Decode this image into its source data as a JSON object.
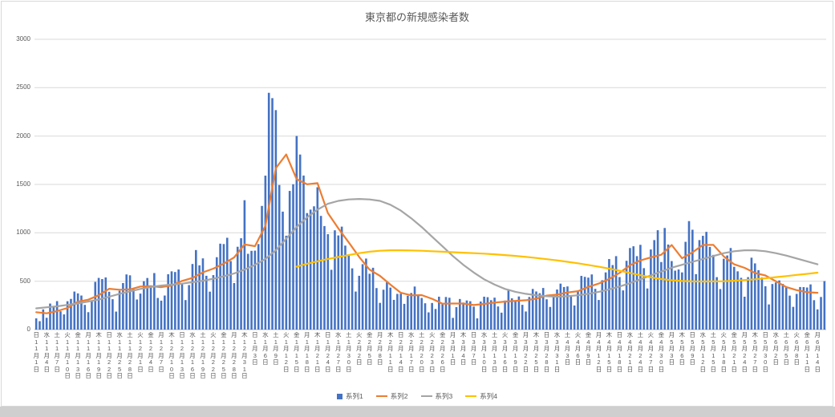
{
  "page": {
    "bottom_strip_color": "#cfcfcf"
  },
  "chart": {
    "gridline_color": "#d9d9d9",
    "axis_line_color": "#bfbfbf",
    "text_color": "#595959",
    "legend": [
      {
        "label": "系列1",
        "marker": "square",
        "color": "#4472c4"
      },
      {
        "label": "系列2",
        "marker": "line",
        "color": "#ed7d31"
      },
      {
        "label": "系列3",
        "marker": "line",
        "color": "#a5a5a5"
      },
      {
        "label": "系列4",
        "marker": "line",
        "color": "#ffc000"
      }
    ]
  },
  "chart_data": {
    "type": "bar",
    "title": "東京都の新規感染者数",
    "xlabel": "",
    "ylabel": "",
    "ylim": [
      0,
      3000
    ],
    "yticks": [
      0,
      500,
      1000,
      1500,
      2000,
      2500,
      3000
    ],
    "grid": true,
    "legend_position": "bottom",
    "x_tick_interval_days": 3,
    "x_tick_labels": [
      "日|11月1日",
      "水|11月4日",
      "土|11月7日",
      "火|11月10日",
      "金|11月13日",
      "月|11月16日",
      "木|11月19日",
      "日|11月22日",
      "水|11月25日",
      "土|11月28日",
      "火|12月1日",
      "金|12月4日",
      "月|12月7日",
      "木|12月10日",
      "日|12月13日",
      "水|12月16日",
      "土|12月19日",
      "火|12月22日",
      "金|12月25日",
      "月|12月28日",
      "木|12月31日",
      "日|1月3日",
      "水|1月6日",
      "土|1月9日",
      "火|1月12日",
      "金|1月15日",
      "月|1月18日",
      "木|1月21日",
      "日|1月24日",
      "水|1月27日",
      "土|1月30日",
      "火|2月2日",
      "金|2月5日",
      "月|2月8日",
      "木|2月11日",
      "日|2月14日",
      "水|2月17日",
      "土|2月20日",
      "火|2月23日",
      "金|2月26日",
      "月|3月1日",
      "木|3月4日",
      "日|3月7日",
      "水|3月10日",
      "土|3月13日",
      "火|3月16日",
      "金|3月19日",
      "月|3月22日",
      "木|3月25日",
      "日|3月28日",
      "水|3月31日",
      "土|4月3日",
      "火|4月6日",
      "金|4月9日",
      "月|4月12日",
      "木|4月15日",
      "日|4月18日",
      "水|4月21日",
      "土|4月24日",
      "火|4月27日",
      "金|4月30日",
      "月|5月3日",
      "木|5月6日",
      "日|5月9日",
      "水|5月12日",
      "土|5月15日",
      "火|5月18日",
      "金|5月21日",
      "月|5月24日",
      "木|5月27日",
      "日|5月30日",
      "水|6月2日",
      "土|6月5日",
      "火|6月8日",
      "金|6月11日",
      "月|6月14日"
    ],
    "series": [
      {
        "name": "系列1",
        "type": "bar",
        "color": "#4472c4",
        "values": [
          116,
          87,
          209,
          122,
          269,
          242,
          294,
          189,
          157,
          293,
          317,
          393,
          374,
          352,
          255,
          180,
          298,
          493,
          534,
          522,
          539,
          391,
          314,
          186,
          401,
          481,
          570,
          561,
          418,
          311,
          372,
          500,
          533,
          449,
          584,
          327,
          299,
          352,
          572,
          602,
          595,
          621,
          480,
          305,
          460,
          678,
          822,
          664,
          736,
          556,
          392,
          563,
          748,
          888,
          884,
          949,
          708,
          481,
          856,
          944,
          1337,
          783,
          814,
          816,
          884,
          1278,
          1591,
          2447,
          2392,
          2268,
          1494,
          1219,
          970,
          1433,
          1502,
          2001,
          1809,
          1592,
          1204,
          1240,
          1274,
          1471,
          1175,
          1070,
          986,
          618,
          1026,
          973,
          1064,
          868,
          769,
          633,
          393,
          556,
          676,
          734,
          577,
          639,
          429,
          276,
          412,
          491,
          434,
          307,
          369,
          371,
          266,
          350,
          378,
          445,
          353,
          327,
          272,
          178,
          275,
          213,
          340,
          270,
          337,
          329,
          121,
          232,
          316,
          279,
          301,
          293,
          237,
          116,
          290,
          340,
          335,
          304,
          330,
          239,
          175,
          300,
          409,
          323,
          303,
          342,
          256,
          187,
          337,
          420,
          394,
          376,
          430,
          313,
          234,
          364,
          414,
          475,
          440,
          446,
          355,
          249,
          399,
          555,
          545,
          537,
          570,
          421,
          306,
          510,
          591,
          729,
          667,
          759,
          543,
          405,
          711,
          843,
          861,
          759,
          876,
          635,
          425,
          828,
          925,
          1027,
          698,
          1050,
          879,
          708,
          609,
          621,
          591,
          907,
          1121,
          1032,
          573,
          925,
          969,
          1010,
          854,
          772,
          542,
          419,
          732,
          766,
          843,
          649,
          602,
          535,
          340,
          542,
          743,
          684,
          614,
          539,
          448,
          260,
          471,
          487,
          508,
          472,
          436,
          351,
          235,
          369,
          440,
          439,
          435,
          467,
          304,
          209,
          337,
          501
        ]
      },
      {
        "name": "系列2",
        "type": "line",
        "color": "#ed7d31",
        "start_tick_index": 0,
        "tick_values": [
          180,
          168,
          191,
          224,
          288,
          309,
          355,
          422,
          412,
          415,
          445,
          449,
          438,
          455,
          503,
          534,
          592,
          630,
          681,
          746,
          880,
          862,
          1072,
          1668,
          1810,
          1555,
          1502,
          1513,
          1203,
          1046,
          901,
          751,
          620,
          555,
          465,
          380,
          354,
          356,
          318,
          268,
          269,
          269,
          254,
          265,
          279,
          289,
          297,
          303,
          320,
          351,
          361,
          384,
          397,
          441,
          476,
          523,
          586,
          665,
          714,
          747,
          773,
          874,
          737,
          798,
          874,
          876,
          757,
          675,
          638,
          585,
          559,
          500,
          440,
          408,
          386,
          380
        ]
      },
      {
        "name": "系列3",
        "type": "line",
        "color": "#a5a5a5",
        "start_tick_index": 0,
        "tick_values": [
          220,
          230,
          240,
          255,
          270,
          290,
          310,
          340,
          370,
          395,
          420,
          440,
          455,
          465,
          475,
          490,
          505,
          525,
          550,
          580,
          620,
          670,
          730,
          820,
          940,
          1060,
          1160,
          1240,
          1300,
          1330,
          1345,
          1350,
          1345,
          1330,
          1290,
          1230,
          1150,
          1060,
          960,
          860,
          760,
          670,
          590,
          520,
          465,
          420,
          390,
          370,
          355,
          345,
          340,
          345,
          355,
          370,
          390,
          415,
          445,
          480,
          520,
          560,
          600,
          640,
          670,
          700,
          730,
          760,
          790,
          810,
          820,
          820,
          810,
          790,
          765,
          735,
          705,
          675
        ]
      },
      {
        "name": "系列4",
        "type": "line",
        "color": "#ffc000",
        "start_tick_index": 25,
        "tick_values": [
          650,
          680,
          705,
          730,
          750,
          770,
          790,
          805,
          815,
          820,
          820,
          818,
          815,
          810,
          805,
          800,
          795,
          790,
          785,
          778,
          770,
          762,
          752,
          740,
          728,
          715,
          700,
          685,
          668,
          650,
          630,
          608,
          585,
          562,
          540,
          522,
          510,
          502,
          498,
          497,
          498,
          500,
          505,
          512,
          520,
          530,
          542,
          553,
          565,
          576,
          588
        ]
      }
    ]
  }
}
